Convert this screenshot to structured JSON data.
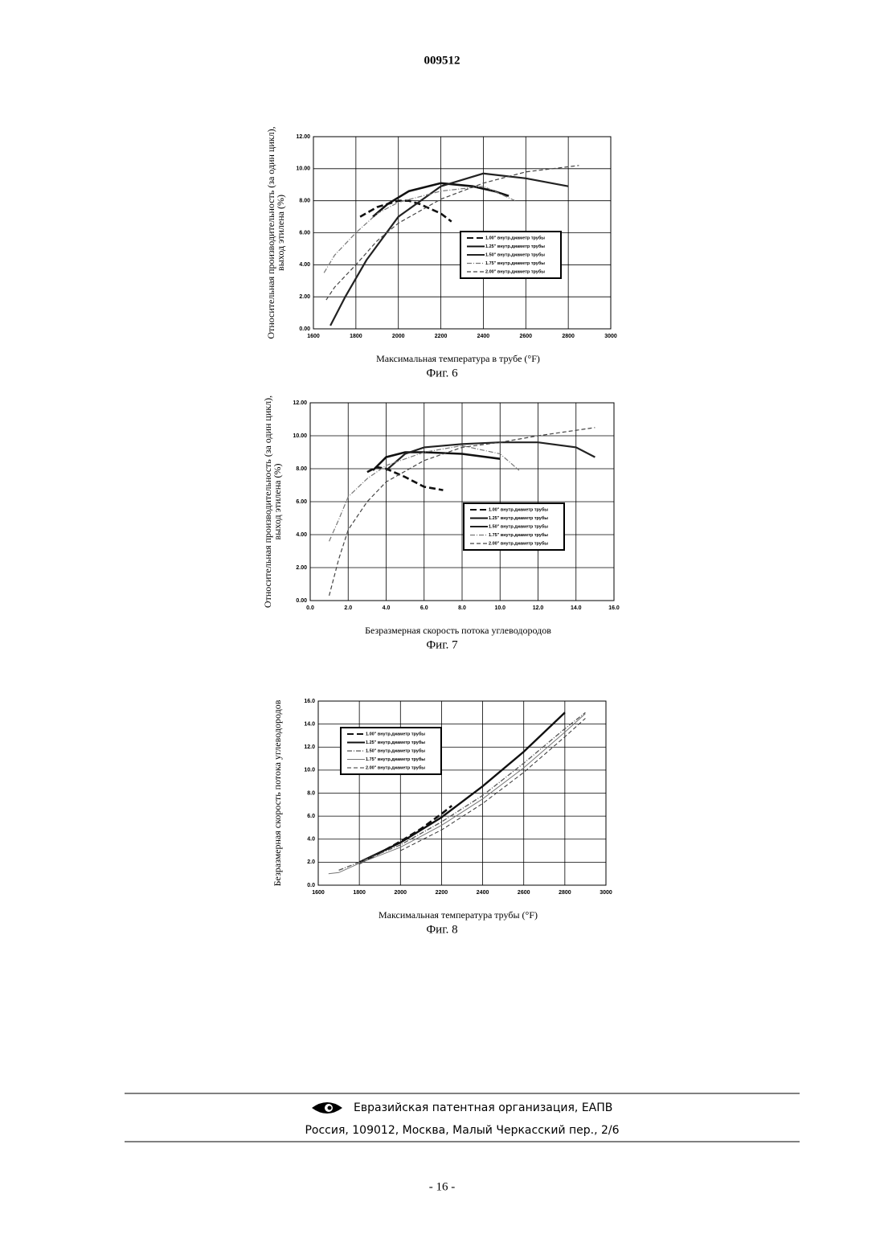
{
  "header": {
    "number": "009512"
  },
  "chart_data": [
    {
      "type": "line",
      "caption": "Фиг. 6",
      "ylabel": [
        "Относительная производительность (за один цикл),",
        "выход этилена (%)"
      ],
      "xlabel": "Максимальная температура в трубе (°F)",
      "xlim": [
        1600,
        3000
      ],
      "xticks": [
        1600,
        1800,
        2000,
        2200,
        2400,
        2600,
        2800,
        3000
      ],
      "ylim": [
        0,
        12
      ],
      "yticks": [
        {
          "value": 0,
          "label": "0.00"
        },
        {
          "value": 2,
          "label": "2.00"
        },
        {
          "value": 4,
          "label": "4.00"
        },
        {
          "value": 6,
          "label": "6.00"
        },
        {
          "value": 8,
          "label": "8.00"
        },
        {
          "value": 10,
          "label": "10.00"
        },
        {
          "value": 12,
          "label": "12.00"
        }
      ],
      "grid": true,
      "legend": "lower right",
      "series": [
        {
          "name": "1.00\" внутр.диаметр трубы",
          "color": "#111111",
          "dash": "8 4",
          "width": 2.6,
          "x": [
            1820,
            1900,
            2000,
            2050,
            2100,
            2200,
            2250
          ],
          "values": [
            7.0,
            7.6,
            8.0,
            8.0,
            7.8,
            7.2,
            6.7
          ]
        },
        {
          "name": "1.25\" внутр.диаметр трубы",
          "color": "#111111",
          "dash": "none",
          "width": 2.6,
          "x": [
            1880,
            1950,
            2050,
            2200,
            2350,
            2450,
            2520
          ],
          "values": [
            7.0,
            7.8,
            8.6,
            9.1,
            8.9,
            8.6,
            8.3
          ]
        },
        {
          "name": "1.50\" внутр.диаметр трубы",
          "color": "#222222",
          "dash": "none",
          "width": 2.2,
          "x": [
            1680,
            1750,
            1850,
            2000,
            2200,
            2400,
            2600,
            2800
          ],
          "values": [
            0.2,
            2.0,
            4.3,
            7.0,
            8.9,
            9.7,
            9.4,
            8.9
          ]
        },
        {
          "name": "1.75\" внутр.диаметр трубы",
          "color": "#777777",
          "dash": "6 2 1 2",
          "width": 1.2,
          "x": [
            1650,
            1700,
            1800,
            1900,
            2000,
            2200,
            2400,
            2550
          ],
          "values": [
            3.5,
            4.6,
            6.0,
            7.2,
            7.9,
            8.6,
            8.9,
            8.0
          ]
        },
        {
          "name": "2.00\" внутр.диаметр трубы",
          "color": "#444444",
          "dash": "5 3",
          "width": 1.2,
          "x": [
            1660,
            1700,
            1800,
            1900,
            2000,
            2200,
            2400,
            2600,
            2850
          ],
          "values": [
            1.8,
            2.6,
            4.0,
            5.5,
            6.6,
            8.1,
            9.1,
            9.8,
            10.2
          ]
        }
      ]
    },
    {
      "type": "line",
      "caption": "Фиг. 7",
      "ylabel": [
        "Относительная производительность (за один цикл),",
        "выход этилена (%)"
      ],
      "xlabel": "Безразмерная скорость потока углеводородов",
      "xlim": [
        0,
        16
      ],
      "xticks": [
        {
          "value": 0,
          "label": "0.0"
        },
        {
          "value": 2,
          "label": "2.0"
        },
        {
          "value": 4,
          "label": "4.0"
        },
        {
          "value": 6,
          "label": "6.0"
        },
        {
          "value": 8,
          "label": "8.0"
        },
        {
          "value": 10,
          "label": "10.0"
        },
        {
          "value": 12,
          "label": "12.0"
        },
        {
          "value": 14,
          "label": "14.0"
        },
        {
          "value": 16,
          "label": "16.0"
        }
      ],
      "ylim": [
        0,
        12
      ],
      "yticks": [
        {
          "value": 0,
          "label": "0.00"
        },
        {
          "value": 2,
          "label": "2.00"
        },
        {
          "value": 4,
          "label": "4.00"
        },
        {
          "value": 6,
          "label": "6.00"
        },
        {
          "value": 8,
          "label": "8.00"
        },
        {
          "value": 10,
          "label": "10.00"
        },
        {
          "value": 12,
          "label": "12.00"
        }
      ],
      "grid": true,
      "legend": "lower right",
      "series": [
        {
          "name": "1.00\" внутр.диаметр трубы",
          "color": "#111111",
          "dash": "8 4",
          "width": 2.6,
          "x": [
            3.0,
            3.5,
            4.0,
            5.0,
            6.0,
            7.0
          ],
          "values": [
            7.8,
            8.1,
            8.0,
            7.5,
            6.9,
            6.7
          ]
        },
        {
          "name": "1.25\" внутр.диаметр трубы",
          "color": "#111111",
          "dash": "none",
          "width": 2.6,
          "x": [
            3.3,
            4.0,
            5.0,
            6.0,
            8.0,
            10.0
          ],
          "values": [
            7.9,
            8.7,
            9.0,
            9.0,
            8.9,
            8.6
          ]
        },
        {
          "name": "1.50\" внутр.диаметр трубы",
          "color": "#222222",
          "dash": "none",
          "width": 2.2,
          "x": [
            4.0,
            5.0,
            6.0,
            8.0,
            10.0,
            12.0,
            14.0,
            15.0
          ],
          "values": [
            7.9,
            8.9,
            9.3,
            9.5,
            9.6,
            9.6,
            9.3,
            8.7
          ]
        },
        {
          "name": "1.75\" внутр.диаметр трубы",
          "color": "#777777",
          "dash": "6 2 1 2",
          "width": 1.2,
          "x": [
            1.0,
            1.5,
            2.0,
            3.0,
            4.0,
            6.0,
            8.0,
            10.0,
            11.0
          ],
          "values": [
            3.6,
            4.9,
            6.3,
            7.4,
            8.2,
            9.0,
            9.4,
            8.9,
            7.9
          ]
        },
        {
          "name": "2.00\" внутр.диаметр трубы",
          "color": "#444444",
          "dash": "5 3",
          "width": 1.2,
          "x": [
            1.0,
            1.5,
            2.0,
            3.0,
            4.0,
            6.0,
            8.0,
            10.0,
            12.0,
            15.0
          ],
          "values": [
            0.3,
            2.5,
            4.3,
            6.0,
            7.2,
            8.5,
            9.3,
            9.6,
            10.0,
            10.5
          ]
        }
      ]
    },
    {
      "type": "line",
      "caption": "Фиг. 8",
      "ylabel": [
        "Безразмерная скорость потока углеводородов"
      ],
      "xlabel": "Максимальная температура трубы (°F)",
      "xlim": [
        1600,
        3000
      ],
      "xticks": [
        1600,
        1800,
        2000,
        2200,
        2400,
        2600,
        2800,
        3000
      ],
      "ylim": [
        0,
        16
      ],
      "yticks": [
        {
          "value": 0,
          "label": "0.0"
        },
        {
          "value": 2,
          "label": "2.0"
        },
        {
          "value": 4,
          "label": "4.0"
        },
        {
          "value": 6,
          "label": "6.0"
        },
        {
          "value": 8,
          "label": "8.0"
        },
        {
          "value": 10,
          "label": "10.0"
        },
        {
          "value": 12,
          "label": "12.0"
        },
        {
          "value": 14,
          "label": "14.0"
        },
        {
          "value": 16,
          "label": "16.0"
        }
      ],
      "grid": true,
      "legend": "upper left",
      "series": [
        {
          "name": "1.00\" внутр.диаметр трубы",
          "color": "#111111",
          "dash": "8 4",
          "width": 2.6,
          "x": [
            1800,
            1900,
            2000,
            2100,
            2200,
            2250
          ],
          "values": [
            1.9,
            2.8,
            3.8,
            4.9,
            6.2,
            6.9
          ]
        },
        {
          "name": "1.25\" внутр.диаметр трубы",
          "color": "#111111",
          "dash": "none",
          "width": 2.4,
          "x": [
            1800,
            2000,
            2200,
            2400,
            2600,
            2800
          ],
          "values": [
            2.0,
            3.7,
            5.9,
            8.6,
            11.6,
            15.0
          ]
        },
        {
          "name": "1.50\" внутр.диаметр трубы",
          "color": "#555555",
          "dash": "6 2 1 2",
          "width": 1.3,
          "x": [
            1700,
            1800,
            2000,
            2200,
            2400,
            2600,
            2800,
            2900
          ],
          "values": [
            1.3,
            2.0,
            3.5,
            5.5,
            7.8,
            10.6,
            13.6,
            15.0
          ]
        },
        {
          "name": "1.75\" внутр.диаметр трубы",
          "color": "#777777",
          "dash": "none",
          "width": 1.0,
          "x": [
            1650,
            1700,
            1800,
            2000,
            2200,
            2400,
            2600,
            2800,
            2900
          ],
          "values": [
            1.0,
            1.1,
            1.9,
            3.3,
            5.2,
            7.5,
            10.2,
            13.3,
            14.9
          ]
        },
        {
          "name": "2.00\" внутр.диаметр трубы",
          "color": "#333333",
          "dash": "5 3",
          "width": 1.0,
          "x": [
            2000,
            2200,
            2400,
            2600,
            2800,
            2900
          ],
          "values": [
            3.0,
            4.8,
            7.1,
            9.8,
            12.9,
            14.5
          ]
        }
      ]
    }
  ],
  "footer": {
    "organization": "Евразийская патентная организация, ЕАПВ",
    "address": "Россия, 109012, Москва, Малый Черкасский пер., 2/6"
  },
  "page_number": "- 16 -"
}
